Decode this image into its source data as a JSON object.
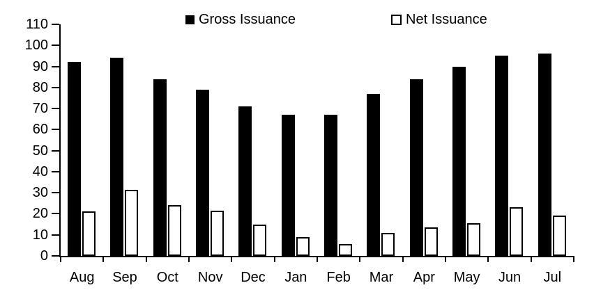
{
  "chart": {
    "legend": [
      {
        "label": "Gross Issuance",
        "swatch": "black-filled-square"
      },
      {
        "label": "Net Issuance",
        "swatch": "white-outlined-square"
      }
    ]
  },
  "chart_data": {
    "type": "bar",
    "title": "",
    "xlabel": "",
    "ylabel": "",
    "categories": [
      "Aug",
      "Sep",
      "Oct",
      "Nov",
      "Dec",
      "Jan",
      "Feb",
      "Mar",
      "Apr",
      "May",
      "Jun",
      "Jul"
    ],
    "series": [
      {
        "name": "Gross Issuance",
        "fill": "#000000",
        "stroke": "#000000",
        "values": [
          92,
          94,
          84,
          79,
          71,
          67,
          67,
          77,
          84,
          90,
          95,
          96
        ]
      },
      {
        "name": "Net Issuance",
        "fill": "#ffffff",
        "stroke": "#000000",
        "values": [
          21,
          31.5,
          24,
          21.5,
          15,
          9,
          5.5,
          11,
          13.5,
          15.5,
          23,
          19
        ]
      }
    ],
    "ylim": [
      0,
      110
    ],
    "ytick_step": 10,
    "yticks": [
      0,
      10,
      20,
      30,
      40,
      50,
      60,
      70,
      80,
      90,
      100,
      110
    ],
    "legend_position": "top-center",
    "grid": false,
    "axis_color": "#000000",
    "background_color": "#ffffff"
  }
}
